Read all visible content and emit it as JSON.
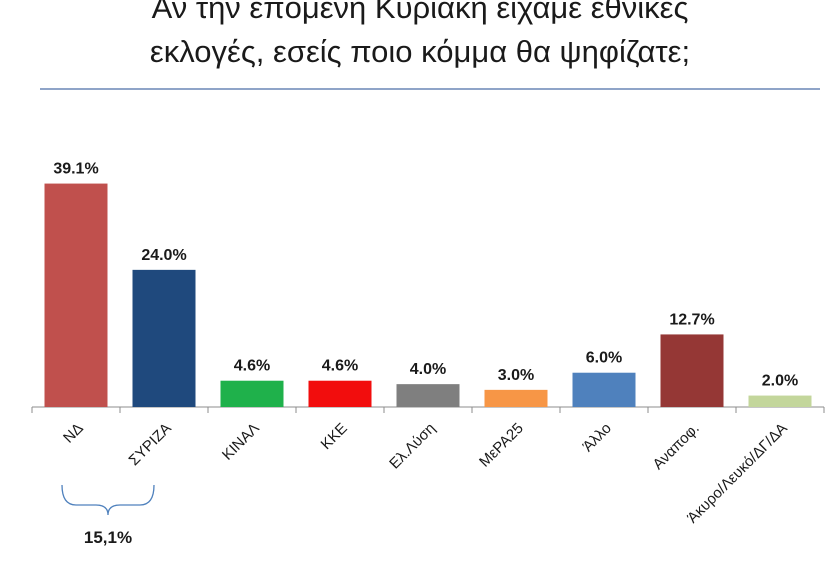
{
  "chart_data": {
    "type": "bar",
    "title_line1": "Αν την επόμενη Κυριακή είχαμε εθνικές",
    "title_line2": "εκλογές, εσείς ποιο κόμμα θα ψηφίζατε;",
    "categories": [
      "ΝΔ",
      "ΣΥΡΙΖΑ",
      "ΚΙΝΑΛ",
      "ΚΚΕ",
      "Ελ.Λύση",
      "ΜεΡΑ25",
      "Άλλο",
      "Αναποφ.",
      "Άκυρο/Λευκό/ΔΓ/ΔΑ"
    ],
    "values": [
      39.1,
      24.0,
      4.6,
      4.6,
      4.0,
      3.0,
      6.0,
      12.7,
      2.0
    ],
    "value_labels": [
      "39.1%",
      "24.0%",
      "4.6%",
      "4.6%",
      "4.0%",
      "3.0%",
      "6.0%",
      "12.7%",
      "2.0%"
    ],
    "colors": [
      "#c0504d",
      "#1f497d",
      "#1fb14b",
      "#f20d0d",
      "#7f7f7f",
      "#f79646",
      "#4f81bd",
      "#953735",
      "#c3d69b"
    ],
    "ylim": [
      0,
      42
    ],
    "grid": false,
    "legend": "none",
    "annotation": {
      "bracket_over": [
        "ΝΔ",
        "ΣΥΡΙΖΑ"
      ],
      "label": "15,1%"
    }
  }
}
